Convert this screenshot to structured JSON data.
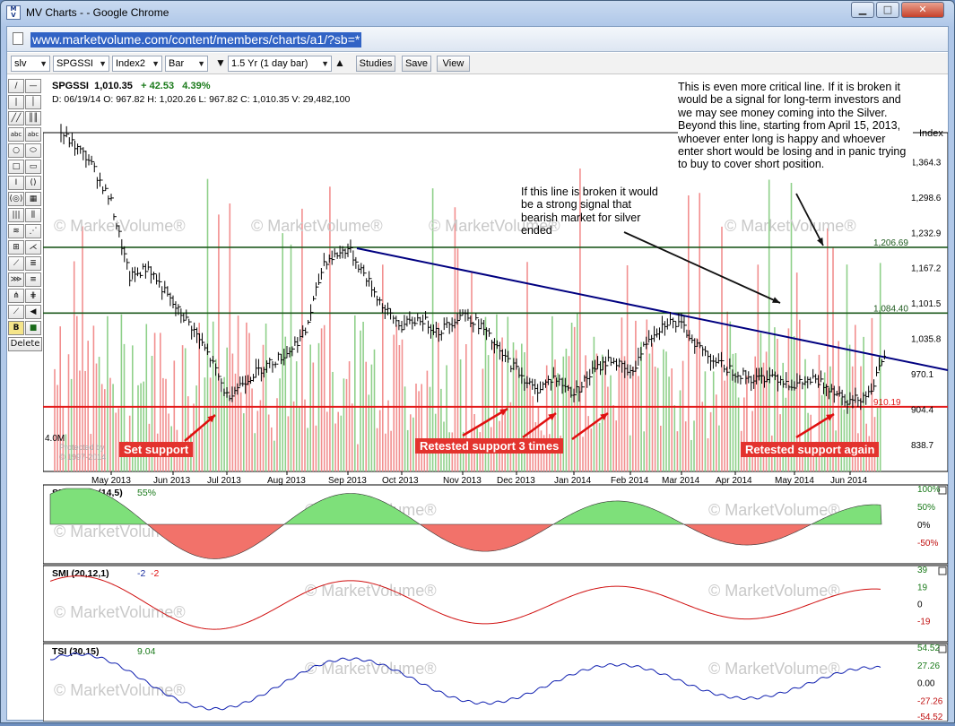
{
  "window": {
    "title": "MV Charts - - Google Chrome",
    "app_icon_text": "M\nV",
    "minimize": "▁",
    "maximize": "□",
    "close": "✕"
  },
  "address_bar": {
    "url": "www.marketvolume.com/content/members/charts/a1/?sb=*"
  },
  "toolbar": {
    "symbol": "slv",
    "compare": "SPGSSI",
    "index": "Index2",
    "chart_type": "Bar",
    "period": "1.5 Yr (1 day bar)",
    "studies": "Studies",
    "save": "Save",
    "view": "View"
  },
  "tools": {
    "labels": [
      "/",
      "—",
      "|",
      "│",
      "abc",
      "abc",
      "○",
      "⬭",
      "□",
      "▭",
      "I",
      "()",
      "B",
      "■",
      "Delete"
    ]
  },
  "quote": {
    "symbol": "SPGSSI",
    "price": "1,010.35",
    "change": "+ 42.53",
    "change_pct": "4.39%",
    "date_line": "D: 06/19/14  O: 967.82  H: 1,020.26  L: 967.82  C: 1,010.35  V: 29,482,100",
    "scale_label": "Index",
    "volume_label": "4.0M",
    "watermark": "© MarketVolume®",
    "protected": "Protected by",
    "copyright": "© 1997-2014"
  },
  "annotations": {
    "critical_line": "This is even more critical line. If it is broken it would be a signal for long-term investors and we may see money coming into the Silver. Beyond this line, starting from April 15, 2013, whoever enter long is happy and whoever enter short would be losing and in panic trying to buy to cover short position.",
    "bearish_line": "If this line is broken it would be a strong signal that bearish market for silver ended",
    "set_support": "Set support",
    "retested_3": "Retested support 3 times",
    "retested_again": "Retested support again"
  },
  "colors": {
    "up": "#3a7a2a",
    "down": "#e01010",
    "trend": "#000080",
    "support": "#e31b1b",
    "resistance": "#1e5a1e",
    "flow_pos": "#7ee07a",
    "flow_neg": "#f2726a"
  },
  "chart_data": [
    {
      "type": "bar",
      "panel": "price",
      "title": "SPGSSI",
      "x_ticks": [
        "May 2013",
        "Jun 2013",
        "Jul 2013",
        "Aug 2013",
        "Sep 2013",
        "Oct 2013",
        "Nov 2013",
        "Dec 2013",
        "Jan 2014",
        "Feb 2014",
        "Mar 2014",
        "Apr 2014",
        "May 2014",
        "Jun 2014"
      ],
      "y_ticks": [
        "1,364.3",
        "1,298.6",
        "1,232.9",
        "1,167.2",
        "1,101.5",
        "1,035.8",
        "970.1",
        "904.4",
        "838.7"
      ],
      "ylim": [
        790,
        1420
      ],
      "levels": [
        {
          "label": "1,206.69",
          "value": 1206.69
        },
        {
          "label": "1,084.40",
          "value": 1084.4
        },
        {
          "label": "910.19",
          "value": 910.19
        }
      ],
      "trendline": [
        {
          "x": "Sep 2013",
          "y": 1205
        },
        {
          "x": "Jun 2014",
          "y": 995
        }
      ],
      "close_path": [
        [
          "Apr 2013",
          1420
        ],
        [
          "Apr 2013",
          1370
        ],
        [
          "May 2013",
          1290
        ],
        [
          "May 2013",
          1150
        ],
        [
          "May 2013",
          1170
        ],
        [
          "Jun 2013",
          1100
        ],
        [
          "Jun 2013",
          1060
        ],
        [
          "Jun 2013",
          1000
        ],
        [
          "Jul 2013",
          930
        ],
        [
          "Jul 2013",
          960
        ],
        [
          "Jul 2013",
          985
        ],
        [
          "Aug 2013",
          1010
        ],
        [
          "Aug 2013",
          1050
        ],
        [
          "Aug 2013",
          1180
        ],
        [
          "Sep 2013",
          1205
        ],
        [
          "Sep 2013",
          1150
        ],
        [
          "Sep 2013",
          1090
        ],
        [
          "Oct 2013",
          1060
        ],
        [
          "Oct 2013",
          1075
        ],
        [
          "Oct 2013",
          1050
        ],
        [
          "Nov 2013",
          1085
        ],
        [
          "Nov 2013",
          1060
        ],
        [
          "Nov 2013",
          1010
        ],
        [
          "Dec 2013",
          980
        ],
        [
          "Dec 2013",
          940
        ],
        [
          "Dec 2013",
          965
        ],
        [
          "Jan 2014",
          935
        ],
        [
          "Jan 2014",
          975
        ],
        [
          "Jan 2014",
          1000
        ],
        [
          "Feb 2014",
          970
        ],
        [
          "Feb 2014",
          1040
        ],
        [
          "Feb 2014",
          1070
        ],
        [
          "Mar 2014",
          1060
        ],
        [
          "Mar 2014",
          1020
        ],
        [
          "Mar 2014",
          990
        ],
        [
          "Apr 2014",
          975
        ],
        [
          "Apr 2014",
          960
        ],
        [
          "Apr 2014",
          970
        ],
        [
          "May 2014",
          950
        ],
        [
          "May 2014",
          960
        ],
        [
          "May 2014",
          945
        ],
        [
          "Jun 2014",
          920
        ],
        [
          "Jun 2014",
          935
        ],
        [
          "Jun 2014",
          1010
        ]
      ]
    },
    {
      "type": "area",
      "panel": "SBV Flow",
      "title": "SBV Flow",
      "params": "(14,5)",
      "value": "55%",
      "y_ticks": [
        "100%",
        "50%",
        "0%",
        "-50%"
      ],
      "ylim": [
        -100,
        100
      ]
    },
    {
      "type": "line",
      "panel": "SMI",
      "title": "SMI",
      "params": "(20,12,1)",
      "value": "-2",
      "value2": "-2",
      "y_ticks": [
        "39",
        "19",
        "0",
        "-19"
      ],
      "ylim": [
        -39,
        39
      ]
    },
    {
      "type": "line",
      "panel": "TSI",
      "title": "TSI",
      "params": "(30,15)",
      "value": "9.04",
      "y_ticks": [
        "54.52",
        "27.26",
        "0.00",
        "-27.26",
        "-54.52"
      ],
      "ylim": [
        -54.52,
        54.52
      ]
    }
  ]
}
